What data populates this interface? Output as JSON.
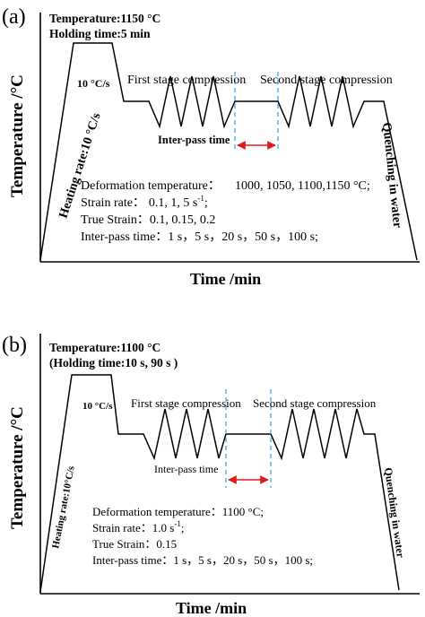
{
  "panel_a": {
    "label": "(a)",
    "temperature": "Temperature:1150 °C",
    "holding": "Holding time:5 min",
    "cooling_rate": "10 °C/s",
    "first_stage": "First stage compression",
    "second_stage": "Second stage compression",
    "interpass_label": "Inter-pass time",
    "heating_rate": "Heating rate:10 °C/s",
    "quenching": "Quenching in water",
    "y_label": "Temperature /°C",
    "x_label": "Time /min",
    "params": {
      "deformation_label": "Deformation temperature：",
      "deformation_value": "1000, 1050, 1100,1150 °C;",
      "strain_rate_label": "Strain rate：",
      "strain_rate_value": "0.1, 1, 5 s",
      "strain_rate_sup": "-1",
      "strain_rate_end": ";",
      "true_strain": "True Strain：0.1, 0.15, 0.2",
      "interpass": "Inter-pass time：1 s，5 s，20 s，50 s，100 s;"
    }
  },
  "panel_b": {
    "label": "(b)",
    "temperature": "Temperature:1100 °C",
    "holding": "(Holding time:10 s, 90 s )",
    "cooling_rate": "10 °C/s",
    "first_stage": "First stage compression",
    "second_stage": "Second stage compression",
    "interpass_label": "Inter-pass time",
    "heating_rate": "Heating rate:10°C/s",
    "quenching": "Quenching in water",
    "y_label": "Temperature /°C",
    "x_label": "Time /min",
    "params": {
      "deformation": "Deformation temperature：1100 °C;",
      "strain_rate_label": "Strain rate：1.0 s",
      "strain_rate_sup": "-1",
      "strain_rate_end": ";",
      "true_strain": "True Strain：0.15",
      "interpass": "Inter-pass time：1 s，5 s，20 s，50 s，100 s;"
    }
  },
  "colors": {
    "line": "#000000",
    "dashed": "#3fa9f5",
    "arrow": "#e01a1a"
  }
}
